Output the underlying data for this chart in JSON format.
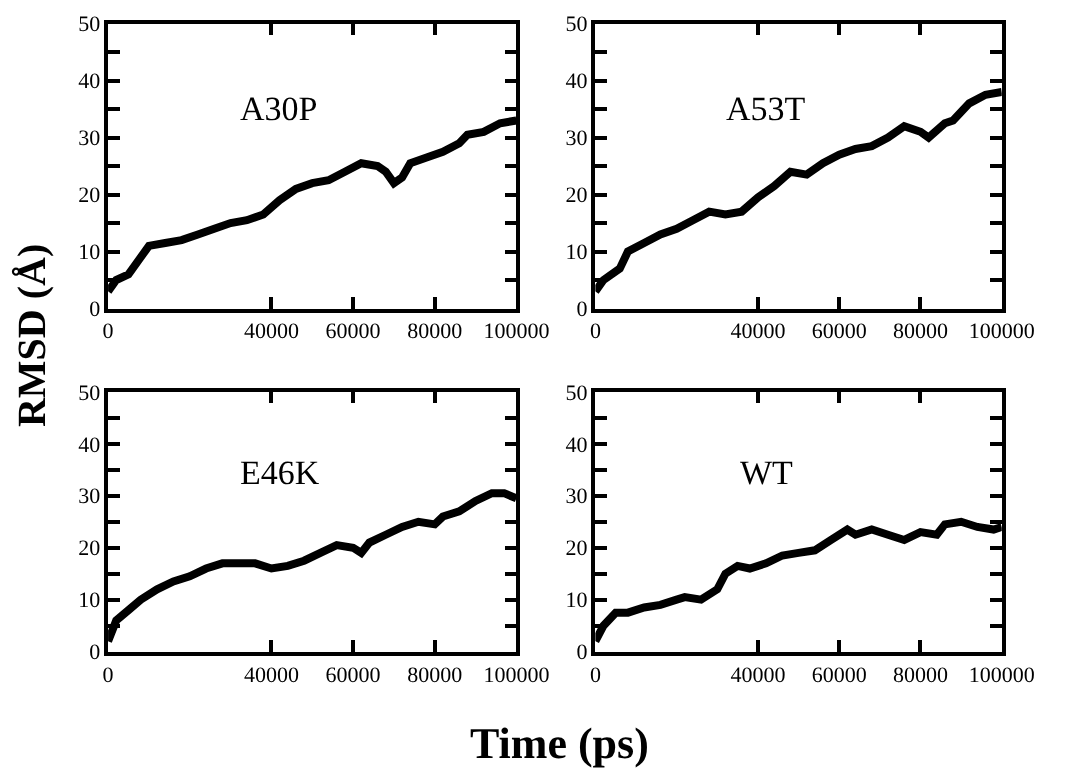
{
  "chart_data": [
    {
      "type": "line",
      "annotations": [
        "A30P"
      ],
      "ylabel": "RMSD (Å)",
      "xlabel": "Time (ps)",
      "xlim": [
        0,
        100000
      ],
      "ylim": [
        0,
        50
      ],
      "xticks": [
        0,
        40000,
        60000,
        80000,
        100000
      ],
      "yticks": [
        0,
        {
          "value": 5,
          "label": null
        },
        10,
        {
          "value": 15,
          "label": null
        },
        20,
        {
          "value": 25,
          "label": null
        },
        30,
        {
          "value": 35,
          "label": null
        },
        40,
        {
          "value": 45,
          "label": null
        },
        50
      ],
      "x": [
        0,
        2000,
        5000,
        8000,
        10000,
        14000,
        18000,
        22000,
        26000,
        30000,
        34000,
        38000,
        42000,
        46000,
        50000,
        54000,
        58000,
        62000,
        66000,
        68000,
        70000,
        72000,
        74000,
        78000,
        82000,
        86000,
        88000,
        92000,
        96000,
        100000
      ],
      "series": [
        {
          "color": "#000000",
          "values": [
            3,
            5,
            6,
            9,
            11,
            11.5,
            12,
            13,
            14,
            15,
            15.5,
            16.5,
            19,
            21,
            22,
            22.5,
            24,
            25.5,
            25,
            24,
            22,
            23,
            25.5,
            26.5,
            27.5,
            29,
            30.5,
            31,
            32.5,
            33
          ]
        }
      ]
    },
    {
      "type": "line",
      "annotations": [
        "A53T"
      ],
      "xlim": [
        0,
        100000
      ],
      "ylim": [
        0,
        50
      ],
      "xticks": [
        0,
        40000,
        60000,
        80000,
        100000
      ],
      "yticks": [
        0,
        {
          "value": 5,
          "label": null
        },
        10,
        {
          "value": 15,
          "label": null
        },
        20,
        {
          "value": 25,
          "label": null
        },
        30,
        {
          "value": 35,
          "label": null
        },
        40,
        {
          "value": 45,
          "label": null
        },
        50
      ],
      "x": [
        0,
        2000,
        6000,
        8000,
        12000,
        16000,
        20000,
        24000,
        28000,
        32000,
        36000,
        40000,
        44000,
        48000,
        52000,
        56000,
        60000,
        64000,
        68000,
        72000,
        76000,
        80000,
        82000,
        86000,
        88000,
        92000,
        96000,
        100000
      ],
      "series": [
        {
          "color": "#000000",
          "values": [
            3,
            5,
            7,
            10,
            11.5,
            13,
            14,
            15.5,
            17,
            16.5,
            17,
            19.5,
            21.5,
            24,
            23.5,
            25.5,
            27,
            28,
            28.5,
            30,
            32,
            31,
            30,
            32.5,
            33,
            36,
            37.5,
            38
          ]
        }
      ]
    },
    {
      "type": "line",
      "annotations": [
        "E46K"
      ],
      "xlim": [
        0,
        100000
      ],
      "ylim": [
        0,
        50
      ],
      "xticks": [
        0,
        40000,
        60000,
        80000,
        100000
      ],
      "yticks": [
        0,
        {
          "value": 5,
          "label": null
        },
        10,
        {
          "value": 15,
          "label": null
        },
        20,
        {
          "value": 25,
          "label": null
        },
        30,
        {
          "value": 35,
          "label": null
        },
        40,
        {
          "value": 45,
          "label": null
        },
        {
          "value": 50,
          "label": "50"
        }
      ],
      "x": [
        0,
        2000,
        5000,
        8000,
        12000,
        16000,
        20000,
        24000,
        28000,
        32000,
        36000,
        40000,
        44000,
        48000,
        52000,
        56000,
        60000,
        62000,
        64000,
        68000,
        72000,
        76000,
        80000,
        82000,
        86000,
        90000,
        94000,
        97000,
        100000
      ],
      "series": [
        {
          "color": "#000000",
          "values": [
            2,
            6,
            8,
            10,
            12,
            13.5,
            14.5,
            16,
            17,
            17,
            17,
            16,
            16.5,
            17.5,
            19,
            20.5,
            20,
            19,
            21,
            22.5,
            24,
            25,
            24.5,
            26,
            27,
            29,
            30.5,
            30.5,
            29.5
          ]
        }
      ]
    },
    {
      "type": "line",
      "annotations": [
        "WT"
      ],
      "xlim": [
        0,
        100000
      ],
      "ylim": [
        0,
        50
      ],
      "xticks": [
        0,
        40000,
        60000,
        80000,
        100000
      ],
      "yticks": [
        0,
        {
          "value": 5,
          "label": null
        },
        10,
        {
          "value": 15,
          "label": null
        },
        20,
        {
          "value": 25,
          "label": null
        },
        30,
        {
          "value": 35,
          "label": null
        },
        40,
        {
          "value": 45,
          "label": null
        },
        50
      ],
      "x": [
        0,
        2000,
        5000,
        8000,
        12000,
        16000,
        20000,
        22000,
        26000,
        30000,
        32000,
        35000,
        38000,
        42000,
        46000,
        50000,
        54000,
        58000,
        62000,
        64000,
        68000,
        72000,
        76000,
        80000,
        84000,
        86000,
        90000,
        94000,
        98000,
        100000
      ],
      "series": [
        {
          "color": "#000000",
          "values": [
            2,
            5,
            7.5,
            7.5,
            8.5,
            9,
            10,
            10.5,
            10,
            12,
            15,
            16.5,
            16,
            17,
            18.5,
            19,
            19.5,
            21.5,
            23.5,
            22.5,
            23.5,
            22.5,
            21.5,
            23,
            22.5,
            24.5,
            25,
            24,
            23.5,
            24
          ]
        }
      ]
    }
  ]
}
